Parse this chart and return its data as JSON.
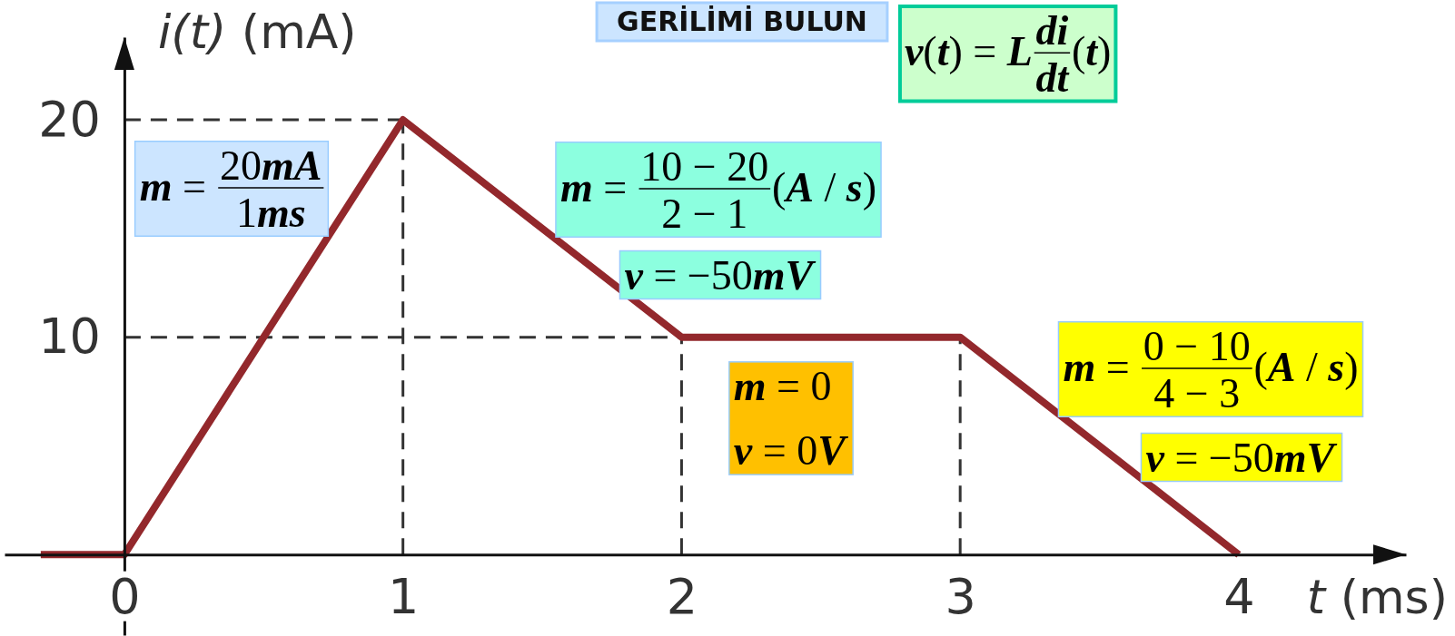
{
  "chart_data": {
    "type": "line",
    "title": "GERİLİMİ BULUN",
    "xlabel": "t (ms)",
    "ylabel": "i(t) (mA)",
    "x": [
      -0.3,
      0,
      1,
      2,
      3,
      4
    ],
    "series": [
      {
        "color": "#93282c",
        "values": [
          0,
          0,
          20,
          10,
          10,
          0
        ]
      }
    ],
    "line_style": "solid",
    "xlim": [
      -0.43,
      4.6
    ],
    "xticks": [
      0,
      1,
      2,
      3,
      4
    ],
    "ylim": [
      -3.7,
      23.8
    ],
    "yticks": [
      10,
      20
    ],
    "ref_lines": [
      {
        "axis": "y",
        "value": 20,
        "color": "#333333",
        "line_style": "dashed"
      },
      {
        "axis": "y",
        "value": 10,
        "color": "#333333",
        "line_style": "dashed"
      },
      {
        "axis": "x",
        "value": 1,
        "color": "#333333",
        "line_style": "dashed"
      },
      {
        "axis": "x",
        "value": 2,
        "color": "#333333",
        "line_style": "dashed"
      },
      {
        "axis": "x",
        "value": 3,
        "color": "#333333",
        "line_style": "dashed"
      }
    ],
    "annotations": [
      "m = $^{20mA}$$_{1ms}$",
      "m = $^{10 − 20}$$_{2 − 1}$(A / s)",
      "v = −50mV",
      "m = 0\nv = 0V",
      "m = $^{0 − 10}$$_{4 − 3}$(A / s)",
      "v = −50mV",
      "v(t) = L$^{di}$$_{dt}$(t)"
    ]
  }
}
